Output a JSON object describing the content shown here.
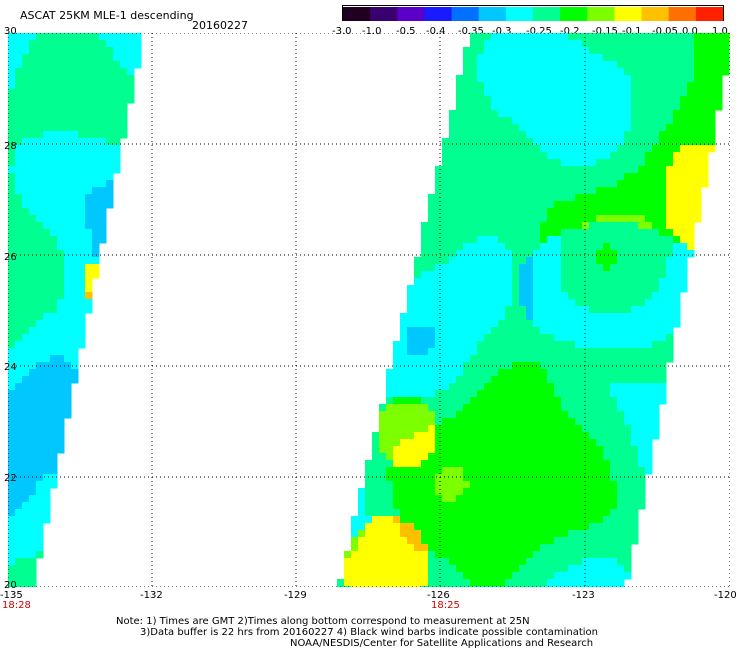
{
  "header": {
    "title": "ASCAT 25KM MLE-1 descending",
    "date": "20160227"
  },
  "colorbar": {
    "colors": [
      "#200020",
      "#3a0070",
      "#5a00c8",
      "#1a1aff",
      "#0070ff",
      "#00c8ff",
      "#00ffff",
      "#00ff90",
      "#00ff00",
      "#7cff00",
      "#ffff00",
      "#ffc000",
      "#ff7000",
      "#ff2000"
    ],
    "labels": [
      "-3.0",
      "-1.0",
      "-0.5",
      "-0.4",
      "-0.35",
      "-0.3",
      "-0.25",
      "-0.2",
      "-0.15",
      "-0.1",
      "-0.05",
      "0.0",
      "1.0"
    ]
  },
  "map": {
    "lon_ticks": [
      "-135",
      "-132",
      "-129",
      "-126",
      "-123",
      "-120"
    ],
    "lat_ticks": [
      "30",
      "28",
      "26",
      "24",
      "22",
      "20"
    ],
    "lon_range": [
      -135,
      -120
    ],
    "lat_range": [
      20,
      30
    ],
    "time_labels": [
      "18:28",
      "18:25"
    ],
    "swaths": [
      {
        "name": "west-swath",
        "dominant_value_range": [
          -0.35,
          -0.1
        ]
      },
      {
        "name": "east-swath",
        "dominant_value_range": [
          -0.3,
          0.0
        ]
      }
    ]
  },
  "notes": [
    "Note: 1) Times are GMT 2)Times along bottom correspond to measurement at 25N",
    "3)Data buffer is 22 hrs from 20160227 4) Black wind barbs indicate possible contamination",
    "NOAA/NESDIS/Center for Satellite Applications and Research"
  ]
}
